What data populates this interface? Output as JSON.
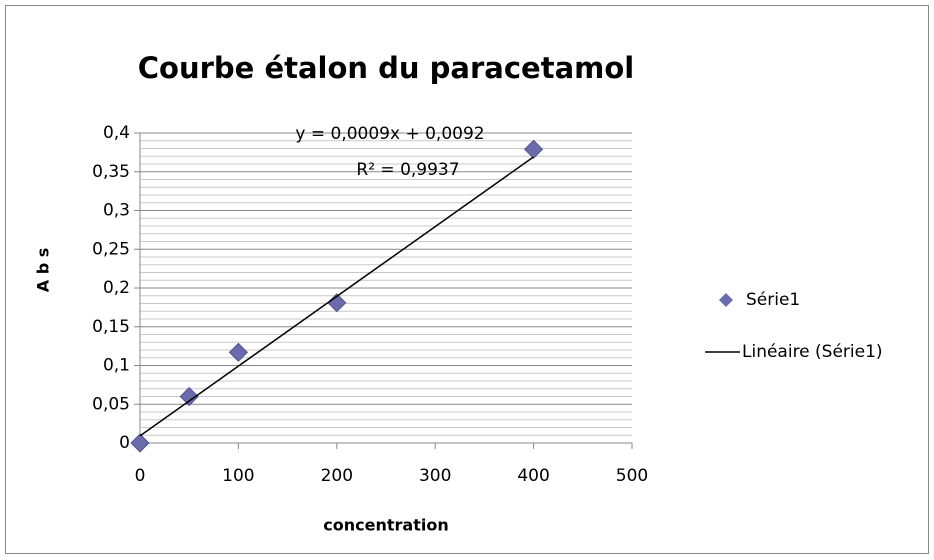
{
  "chart_data": {
    "type": "scatter",
    "title": "Courbe étalon du paracetamol",
    "x_label": "concentration",
    "y_label": "A b s",
    "series": [
      {
        "name": "Série1",
        "color": "#6b6bab",
        "marker": "diamond",
        "x": [
          0,
          50,
          100,
          200,
          400
        ],
        "values": [
          0,
          0.06,
          0.117,
          0.181,
          0.379
        ]
      },
      {
        "name": "Linéaire (Série1)",
        "color": "#000000",
        "marker": "line",
        "x": [
          0,
          400
        ],
        "values": [
          0.0092,
          0.3692
        ]
      }
    ],
    "annotations": [
      "y = 0,0009x + 0,0092",
      "R² = 0,9937"
    ],
    "xlim": [
      0,
      500
    ],
    "xticks": [
      0,
      100,
      200,
      300,
      400,
      500
    ],
    "ylim": [
      0,
      0.4
    ],
    "yticks": [
      0,
      {
        "value": 0.05,
        "label": "0,05"
      },
      {
        "value": 0.1,
        "label": "0,1"
      },
      {
        "value": 0.15,
        "label": "0,15"
      },
      {
        "value": 0.2,
        "label": "0,2"
      },
      {
        "value": 0.25,
        "label": "0,25"
      },
      {
        "value": 0.3,
        "label": "0,3"
      },
      {
        "value": 0.35,
        "label": "0,35"
      },
      {
        "value": 0.4,
        "label": "0,4"
      }
    ],
    "grid": true,
    "minor_grid": true,
    "legend": "right"
  }
}
